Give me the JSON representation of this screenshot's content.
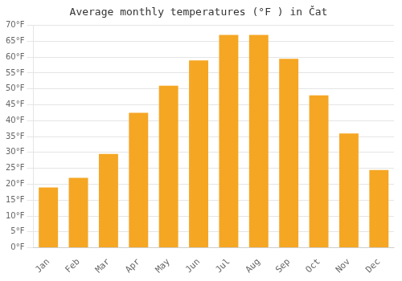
{
  "chart_data": {
    "type": "bar",
    "title": "Average monthly temperatures (°F ) in Čat",
    "categories": [
      "Jan",
      "Feb",
      "Mar",
      "Apr",
      "May",
      "Jun",
      "Jul",
      "Aug",
      "Sep",
      "Oct",
      "Nov",
      "Dec"
    ],
    "values": [
      19,
      22,
      29.5,
      42.5,
      51,
      59,
      67,
      67,
      59.5,
      48,
      36,
      24.5
    ],
    "color": "#F5A623",
    "ylim": [
      0,
      70
    ],
    "yticks": [
      {
        "value": 0,
        "label": "0°F"
      },
      {
        "value": 5,
        "label": "5°F"
      },
      {
        "value": 10,
        "label": "10°F"
      },
      {
        "value": 15,
        "label": "15°F"
      },
      {
        "value": 20,
        "label": "20°F"
      },
      {
        "value": 25,
        "label": "25°F"
      },
      {
        "value": 30,
        "label": "30°F"
      },
      {
        "value": 35,
        "label": "35°F"
      },
      {
        "value": 40,
        "label": "40°F"
      },
      {
        "value": 45,
        "label": "45°F"
      },
      {
        "value": 50,
        "label": "50°F"
      },
      {
        "value": 55,
        "label": "55°F"
      },
      {
        "value": 60,
        "label": "60°F"
      },
      {
        "value": 65,
        "label": "65°F"
      },
      {
        "value": 70,
        "label": "70°F"
      }
    ],
    "grid": true
  }
}
